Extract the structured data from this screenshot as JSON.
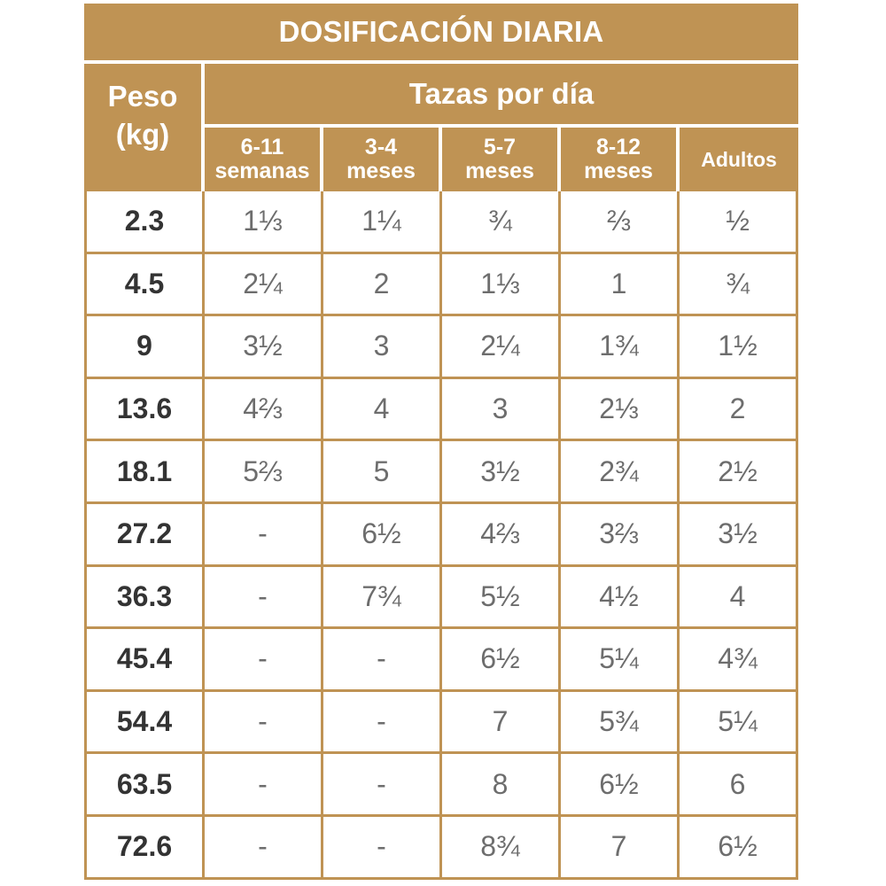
{
  "title": "DOSIFICACIÓN DIARIA",
  "peso_header": [
    "Peso",
    "(kg)"
  ],
  "tazas_header": "Tazas por día",
  "columns": [
    [
      "6-11",
      "semanas"
    ],
    [
      "3-4",
      "meses"
    ],
    [
      "5-7",
      "meses"
    ],
    [
      "8-12",
      "meses"
    ],
    [
      "Adultos"
    ]
  ],
  "rows": [
    {
      "peso": "2.3",
      "values": [
        "1⅓",
        "1¼",
        "¾",
        "⅔",
        "½"
      ]
    },
    {
      "peso": "4.5",
      "values": [
        "2¼",
        "2",
        "1⅓",
        "1",
        "¾"
      ]
    },
    {
      "peso": "9",
      "values": [
        "3½",
        "3",
        "2¼",
        "1¾",
        "1½"
      ]
    },
    {
      "peso": "13.6",
      "values": [
        "4⅔",
        "4",
        "3",
        "2⅓",
        "2"
      ]
    },
    {
      "peso": "18.1",
      "values": [
        "5⅔",
        "5",
        "3½",
        "2¾",
        "2½"
      ]
    },
    {
      "peso": "27.2",
      "values": [
        "-",
        "6½",
        "4⅔",
        "3⅔",
        "3½"
      ]
    },
    {
      "peso": "36.3",
      "values": [
        "-",
        "7¾",
        "5½",
        "4½",
        "4"
      ]
    },
    {
      "peso": "45.4",
      "values": [
        "-",
        "-",
        "6½",
        "5¼",
        "4¾"
      ]
    },
    {
      "peso": "54.4",
      "values": [
        "-",
        "-",
        "7",
        "5¾",
        "5¼"
      ]
    },
    {
      "peso": "63.5",
      "values": [
        "-",
        "-",
        "8",
        "6½",
        "6"
      ]
    },
    {
      "peso": "72.6",
      "values": [
        "-",
        "-",
        "8¾",
        "7",
        "6½"
      ]
    }
  ],
  "colors": {
    "header_gold": "#bf9354",
    "text_dark": "#333333",
    "text_gray": "#6d6d6d"
  }
}
